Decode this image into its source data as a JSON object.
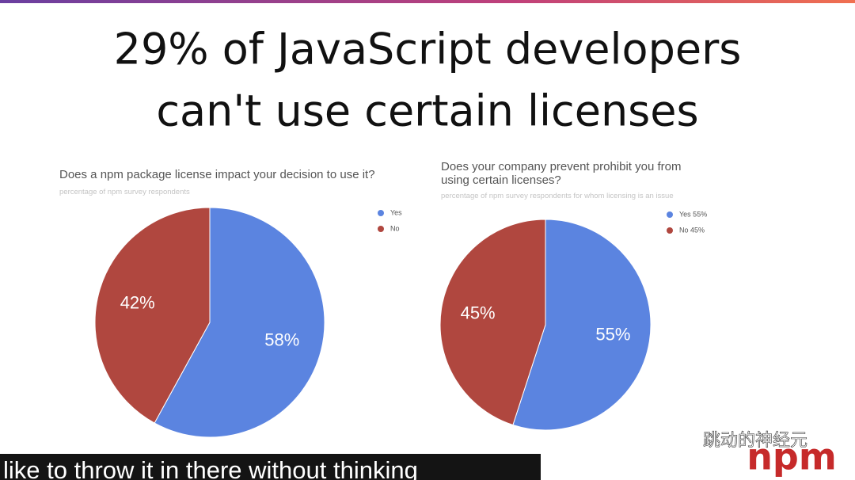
{
  "slide_title": [
    "29% of JavaScript developers",
    "can't use certain licenses"
  ],
  "caption": "like to throw it in there without thinking",
  "watermark": "跳动的神经元",
  "logo": "npm",
  "chart_data": [
    {
      "type": "pie",
      "title": "Does a npm package license impact your decision to use it?",
      "subtitle": "percentage of npm survey respondents",
      "categories": [
        "Yes",
        "No"
      ],
      "values": [
        58,
        42
      ],
      "value_labels": [
        "58%",
        "42%"
      ],
      "colors": [
        "#5b84e0",
        "#b0473f"
      ],
      "legend": "right"
    },
    {
      "type": "pie",
      "title": "Does your company prevent prohibit you from using certain licenses?",
      "subtitle": "percentage of npm survey respondents for whom licensing is an issue",
      "categories": [
        "Yes 55%",
        "No 45%"
      ],
      "values": [
        55,
        45
      ],
      "value_labels": [
        "55%",
        "45%"
      ],
      "colors": [
        "#5b84e0",
        "#b0473f"
      ],
      "legend": "right"
    }
  ]
}
